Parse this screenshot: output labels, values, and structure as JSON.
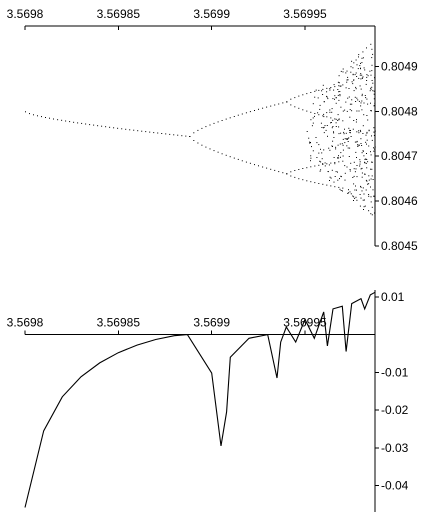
{
  "chart_data": [
    {
      "type": "scatter",
      "title": "",
      "xlabel": "",
      "ylabel": "",
      "xlim": [
        3.5698,
        3.5699875
      ],
      "ylim": [
        0.8045,
        0.80499
      ],
      "grid": false,
      "x_ticks": [
        {
          "value": 3.5698,
          "label": "3.5698"
        },
        {
          "value": 3.56985,
          "label": "3.56985"
        },
        {
          "value": 3.5699,
          "label": "3.5699"
        },
        {
          "value": 3.56995,
          "label": "3.56995"
        }
      ],
      "y_ticks": [
        {
          "value": 0.8045,
          "label": "0.8045"
        },
        {
          "value": 0.8046,
          "label": "0.8046"
        },
        {
          "value": 0.8047,
          "label": "0.8047"
        },
        {
          "value": 0.8048,
          "label": "0.8048"
        },
        {
          "value": 0.8049,
          "label": "0.8049"
        }
      ],
      "colors": {
        "points": "#000000",
        "axes": "#000000"
      },
      "description_of_structure": "bifurcation diagram; single branch near 0.80480 splits at r~3.56989 into 0.80483 and 0.80472, then into four branches, then chaotic band 0.80460-0.80499 near r~3.56998",
      "branches": [
        {
          "r_from": 3.5698,
          "r_to": 3.569888,
          "y_from": 0.8048,
          "y_to": 0.804745
        },
        {
          "r_from": 3.569888,
          "r_to": 3.56994,
          "y_from": 0.804745,
          "y_to": 0.804822
        },
        {
          "r_from": 3.569888,
          "r_to": 3.56994,
          "y_from": 0.804745,
          "y_to": 0.804662
        },
        {
          "r_from": 3.56994,
          "r_to": 3.56997,
          "y_from": 0.804822,
          "y_to": 0.80486
        },
        {
          "r_from": 3.56994,
          "r_to": 3.56997,
          "y_from": 0.804822,
          "y_to": 0.80478
        },
        {
          "r_from": 3.56994,
          "r_to": 3.56997,
          "y_from": 0.804662,
          "y_to": 0.80469
        },
        {
          "r_from": 3.56994,
          "r_to": 3.56997,
          "y_from": 0.804662,
          "y_to": 0.80463
        }
      ],
      "chaotic_band": {
        "r_from": 3.56995,
        "r_to": 3.5699875,
        "y_min": 0.80459,
        "y_max": 0.80499
      }
    },
    {
      "type": "line",
      "title": "",
      "xlabel": "",
      "ylabel": "",
      "xlim": [
        3.5698,
        3.5699875
      ],
      "ylim": [
        -0.047,
        0.0118
      ],
      "grid": false,
      "x_ticks": [
        {
          "value": 3.5698,
          "label": "3.5698"
        },
        {
          "value": 3.56985,
          "label": "3.56985"
        },
        {
          "value": 3.5699,
          "label": "3.5699"
        },
        {
          "value": 3.56995,
          "label": "3.56995"
        }
      ],
      "y_ticks": [
        {
          "value": 0.01,
          "label": "0.01"
        },
        {
          "value": -0.01,
          "label": "-0.01"
        },
        {
          "value": -0.02,
          "label": "-0.02"
        },
        {
          "value": -0.03,
          "label": "-0.03"
        },
        {
          "value": -0.04,
          "label": "-0.04"
        }
      ],
      "colors": {
        "line": "#000000",
        "axes": "#000000"
      },
      "series": [
        {
          "x": [
            3.5698,
            3.56981,
            3.56982,
            3.56983,
            3.56984,
            3.56985,
            3.56986,
            3.56987,
            3.56988,
            3.569887,
            3.5699,
            3.569905,
            3.569908,
            3.56991,
            3.56992,
            3.56993,
            3.569935,
            3.569937,
            3.56994,
            3.569945,
            3.56995,
            3.569955,
            3.56996,
            3.569962,
            3.569965,
            3.56997,
            3.569972,
            3.569975,
            3.56998,
            3.569982,
            3.569985,
            3.5699875
          ],
          "y": [
            -0.0458,
            -0.0255,
            -0.0165,
            -0.0112,
            -0.0075,
            -0.0048,
            -0.0028,
            -0.0013,
            -0.0003,
            0.0,
            -0.0102,
            -0.0295,
            -0.0205,
            -0.006,
            -0.001,
            0.0,
            -0.0115,
            -0.002,
            0.002,
            -0.002,
            0.004,
            -0.001,
            0.006,
            -0.003,
            0.0068,
            0.0075,
            -0.0045,
            0.0082,
            0.0095,
            0.0068,
            0.0105,
            0.0112
          ]
        }
      ]
    }
  ]
}
